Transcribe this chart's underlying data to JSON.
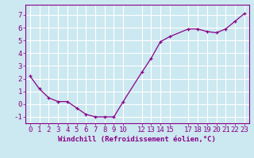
{
  "x": [
    0,
    1,
    2,
    3,
    4,
    5,
    6,
    7,
    8,
    9,
    10,
    12,
    13,
    14,
    15,
    17,
    18,
    19,
    20,
    21,
    22,
    23
  ],
  "y": [
    2.2,
    1.2,
    0.5,
    0.2,
    0.2,
    -0.3,
    -0.8,
    -1.0,
    -1.0,
    -1.0,
    0.2,
    2.5,
    3.6,
    4.9,
    5.3,
    5.9,
    5.9,
    5.7,
    5.6,
    5.9,
    6.5,
    7.1
  ],
  "line_color": "#880088",
  "marker": "+",
  "marker_size": 3,
  "bg_color": "#cce8f0",
  "grid_color": "#ffffff",
  "xlabel": "Windchill (Refroidissement éolien,°C)",
  "xlim": [
    -0.5,
    23.5
  ],
  "ylim": [
    -1.5,
    7.8
  ],
  "xticks": [
    0,
    1,
    2,
    3,
    4,
    5,
    6,
    7,
    8,
    9,
    10,
    12,
    13,
    14,
    15,
    17,
    18,
    19,
    20,
    21,
    22,
    23
  ],
  "yticks": [
    -1,
    0,
    1,
    2,
    3,
    4,
    5,
    6,
    7
  ],
  "xlabel_fontsize": 6.5,
  "tick_fontsize": 6.5,
  "label_color": "#880088"
}
